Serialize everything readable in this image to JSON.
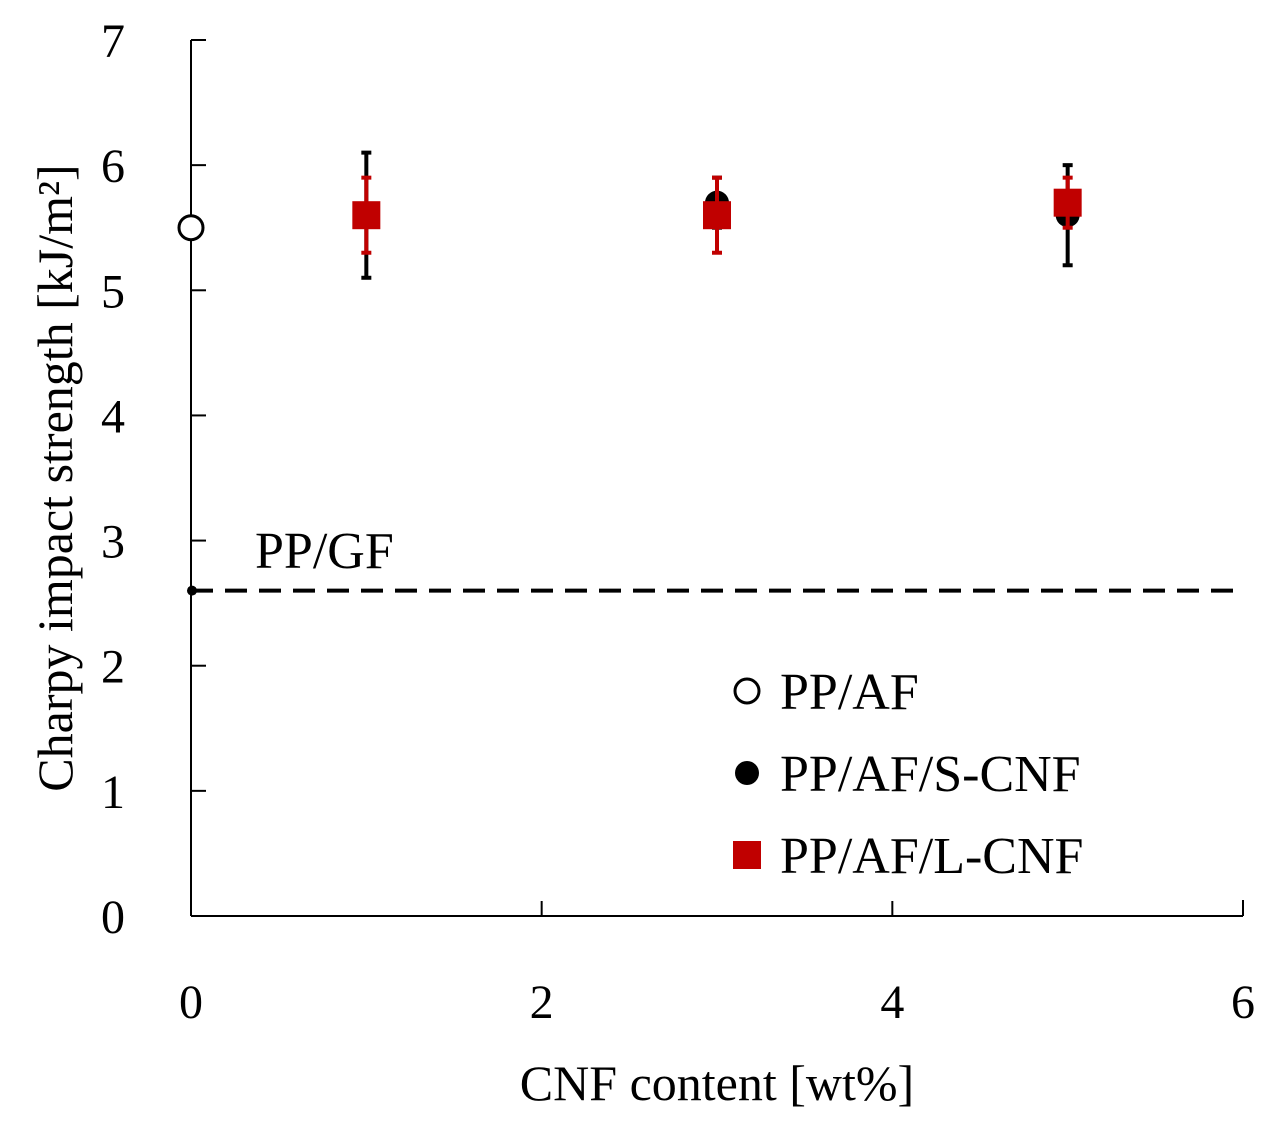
{
  "chart_data": {
    "type": "scatter",
    "xlabel": "CNF content [wt%]",
    "ylabel": "Charpy impact strength [kJ/m²]",
    "xlim": [
      0,
      6
    ],
    "ylim": [
      0,
      7
    ],
    "xticks": [
      0,
      2,
      4,
      6
    ],
    "yticks": [
      0,
      1,
      2,
      3,
      4,
      5,
      6,
      7
    ],
    "grid": false,
    "legend_position": "bottom-right",
    "series": [
      {
        "name": "PP/AF",
        "marker": "open-circle",
        "color": "#000000",
        "points": [
          {
            "x": 0,
            "y": 5.5
          }
        ]
      },
      {
        "name": "PP/AF/S-CNF",
        "marker": "filled-circle",
        "color": "#000000",
        "points": [
          {
            "x": 1,
            "y": 5.6,
            "err": 0.5
          },
          {
            "x": 3,
            "y": 5.7,
            "err": 0.2
          },
          {
            "x": 5,
            "y": 5.6,
            "err": 0.4
          }
        ]
      },
      {
        "name": "PP/AF/L-CNF",
        "marker": "filled-square",
        "color": "#c00000",
        "points": [
          {
            "x": 1,
            "y": 5.6,
            "err": 0.3
          },
          {
            "x": 3,
            "y": 5.6,
            "err": 0.3
          },
          {
            "x": 5,
            "y": 5.7,
            "err": 0.2
          }
        ]
      }
    ],
    "reference_line": {
      "label": "PP/GF",
      "y": 2.6,
      "style": "dashed",
      "color": "#000000"
    }
  }
}
